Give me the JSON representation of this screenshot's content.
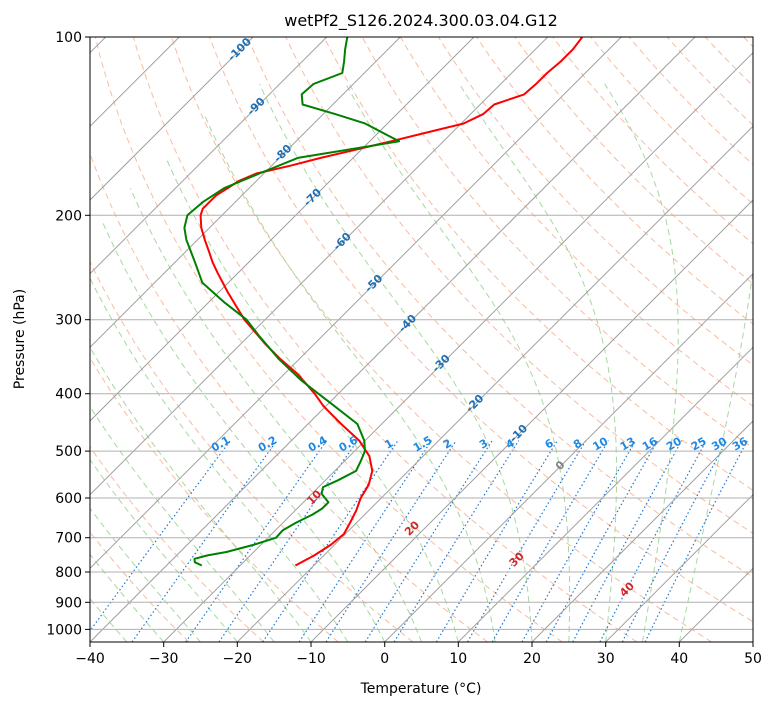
{
  "chart_data": {
    "type": "line",
    "title": "wetPf2_S126.2024.300.03.04.G12",
    "xlabel": "Temperature (°C)",
    "ylabel": "Pressure (hPa)",
    "xlim": [
      -40,
      50
    ],
    "ylim": [
      1050,
      100
    ],
    "y_scale": "log",
    "diagram": "skew-T log-P",
    "grid": true,
    "xticks": [
      -40,
      -30,
      -20,
      -10,
      0,
      10,
      20,
      30,
      40,
      50
    ],
    "yticks": [
      100,
      200,
      300,
      400,
      500,
      600,
      700,
      800,
      900,
      1000
    ],
    "colors": {
      "temperature": "#ff0000",
      "dewpoint": "#008000",
      "isotherm": "#a0a0a0",
      "dry_adiabat": "#f4a582",
      "moist_adiabat": "#a6d8a0",
      "mixing_ratio": "#1f78d1",
      "isotherm_label": "#1f6fb4",
      "dry_adiabat_label": "#d62728",
      "mixing_label": "#1e88e5"
    },
    "isotherm_labels": [
      "-100",
      "-90",
      "-80",
      "-70",
      "-60",
      "-50",
      "-40",
      "-30",
      "-20",
      "-10",
      "0"
    ],
    "isotherm_label_values": [
      -100,
      -90,
      -80,
      -70,
      -60,
      -50,
      -40,
      -30,
      -20,
      -10,
      0
    ],
    "dry_adiabat_labels": [
      "10",
      "20",
      "30",
      "40"
    ],
    "dry_adiabat_label_values": [
      10,
      20,
      30,
      40
    ],
    "mixing_ratio_labels": [
      "0.1",
      "0.2",
      "0.4",
      "0.6",
      "1",
      "1.5",
      "2",
      "3",
      "4",
      "6",
      "8",
      "10",
      "13",
      "16",
      "20",
      "25",
      "30",
      "36"
    ],
    "mixing_ratio_values": [
      0.1,
      0.2,
      0.4,
      0.6,
      1,
      1.5,
      2,
      3,
      4,
      6,
      8,
      10,
      13,
      16,
      20,
      25,
      30,
      36
    ],
    "series": [
      {
        "key": "temperature",
        "pressure": [
          780,
          750,
          720,
          690,
          660,
          630,
          600,
          570,
          540,
          510,
          480,
          450,
          420,
          400,
          370,
          350,
          330,
          300,
          270,
          250,
          240,
          230,
          220,
          210,
          200,
          195,
          190,
          185,
          180,
          175,
          170,
          165,
          160,
          155,
          150,
          145,
          140,
          135,
          130,
          125,
          120,
          115,
          110,
          105,
          100
        ],
        "values": [
          -22.5,
          -21.3,
          -20.5,
          -20.2,
          -20.9,
          -21.7,
          -22.8,
          -23.5,
          -24.9,
          -27.3,
          -30.8,
          -35.5,
          -40.3,
          -43.2,
          -48.3,
          -52.5,
          -56.6,
          -62.8,
          -68.7,
          -72.8,
          -74.9,
          -76.9,
          -79,
          -81.1,
          -82.9,
          -83.5,
          -83.5,
          -83.5,
          -82.9,
          -82.4,
          -81,
          -77.5,
          -74.4,
          -70.8,
          -67.1,
          -63.5,
          -59.7,
          -58.3,
          -58.1,
          -55.4,
          -55.2,
          -55.2,
          -54.9,
          -54.9,
          -55.3
        ]
      },
      {
        "key": "dewpoint",
        "pressure": [
          780,
          770,
          760,
          750,
          740,
          720,
          700,
          680,
          660,
          640,
          625,
          610,
          590,
          575,
          560,
          540,
          520,
          500,
          480,
          450,
          420,
          400,
          380,
          350,
          320,
          300,
          280,
          260,
          240,
          220,
          210,
          200,
          190,
          180,
          170,
          160,
          150,
          140,
          135,
          130,
          125,
          120,
          115,
          110,
          105,
          100
        ],
        "values": [
          -35.2,
          -36.6,
          -37.1,
          -35.8,
          -33.7,
          -31,
          -28.9,
          -29,
          -28.2,
          -27.1,
          -26.6,
          -26.6,
          -28.7,
          -29.4,
          -28.3,
          -27.1,
          -27.8,
          -28.6,
          -30.1,
          -33.3,
          -38.8,
          -42.7,
          -46.8,
          -52.7,
          -58.5,
          -62.5,
          -68,
          -73.5,
          -77.3,
          -81.5,
          -83.4,
          -84.7,
          -84.4,
          -83.4,
          -80.6,
          -77.5,
          -66,
          -73,
          -78.3,
          -84.1,
          -85.6,
          -85.4,
          -83,
          -84.3,
          -85.8,
          -87.2
        ]
      }
    ]
  }
}
